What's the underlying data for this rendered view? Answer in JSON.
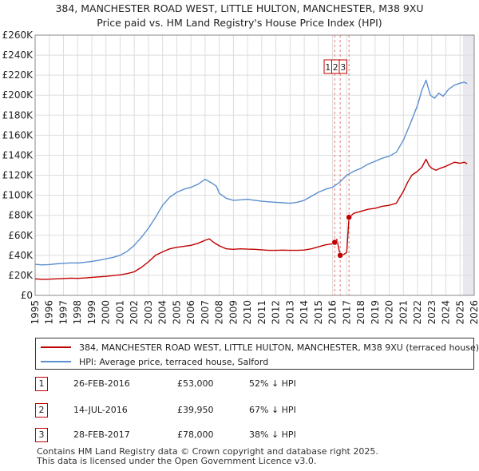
{
  "title": {
    "line1": "384, MANCHESTER ROAD WEST, LITTLE HULTON, MANCHESTER, M38 9XU",
    "line2": "Price paid vs. HM Land Registry's House Price Index (HPI)"
  },
  "colors": {
    "price_line": "#c00000",
    "hpi_line": "#5b8fcf",
    "grid": "#dddddd",
    "marker_vline": "#e07a7a",
    "future_shade": "#e8e8ee"
  },
  "chart_data": {
    "type": "line",
    "title": "Price paid vs. HM Land Registry's House Price Index (HPI)",
    "xlabel": "",
    "ylabel": "",
    "xlim": [
      1995,
      2026
    ],
    "ylim": [
      0,
      260000
    ],
    "y_ticks": [
      0,
      20000,
      40000,
      60000,
      80000,
      100000,
      120000,
      140000,
      160000,
      180000,
      200000,
      220000,
      240000,
      260000
    ],
    "y_tick_labels": [
      "£0",
      "£20K",
      "£40K",
      "£60K",
      "£80K",
      "£100K",
      "£120K",
      "£140K",
      "£160K",
      "£180K",
      "£200K",
      "£220K",
      "£240K",
      "£260K"
    ],
    "x_ticks": [
      1995,
      1996,
      1997,
      1998,
      1999,
      2000,
      2001,
      2002,
      2003,
      2004,
      2005,
      2006,
      2007,
      2008,
      2009,
      2010,
      2011,
      2012,
      2013,
      2014,
      2015,
      2016,
      2017,
      2018,
      2019,
      2020,
      2021,
      2022,
      2023,
      2024,
      2025,
      2026
    ],
    "x_tick_labels": [
      "1995",
      "1996",
      "1997",
      "1998",
      "1999",
      "2000",
      "2001",
      "2002",
      "2003",
      "2004",
      "2005",
      "2006",
      "2007",
      "2008",
      "2009",
      "2010",
      "2011",
      "2012",
      "2013",
      "2014",
      "2015",
      "2016",
      "2017",
      "2018",
      "2019",
      "2020",
      "2021",
      "2022",
      "2023",
      "2024",
      "2025",
      "2026"
    ],
    "grid": true,
    "future_shade_from": 2025.2,
    "series": [
      {
        "name": "384, MANCHESTER ROAD WEST, LITTLE HULTON, MANCHESTER, M38 9XU (terraced house)",
        "color": "#c00000",
        "x": [
          1995.0,
          1995.5,
          1996.0,
          1996.5,
          1997.0,
          1997.5,
          1998.0,
          1998.5,
          1999.0,
          1999.5,
          2000.0,
          2000.5,
          2001.0,
          2001.5,
          2002.0,
          2002.5,
          2003.0,
          2003.5,
          2004.0,
          2004.5,
          2005.0,
          2005.5,
          2006.0,
          2006.5,
          2007.0,
          2007.3,
          2007.6,
          2008.0,
          2008.5,
          2009.0,
          2009.5,
          2010.0,
          2010.5,
          2011.0,
          2011.5,
          2012.0,
          2012.5,
          2013.0,
          2013.5,
          2014.0,
          2014.5,
          2015.0,
          2015.5,
          2016.0,
          2016.15,
          2016.3,
          2016.54,
          2016.8,
          2017.0,
          2017.16,
          2017.5,
          2018.0,
          2018.5,
          2019.0,
          2019.5,
          2020.0,
          2020.5,
          2021.0,
          2021.3,
          2021.6,
          2022.0,
          2022.3,
          2022.6,
          2022.8,
          2023.0,
          2023.3,
          2023.6,
          2024.0,
          2024.3,
          2024.6,
          2025.0,
          2025.3,
          2025.5
        ],
        "values": [
          16500,
          16000,
          16200,
          16500,
          16800,
          17200,
          17000,
          17400,
          18000,
          18500,
          19000,
          19800,
          20500,
          21800,
          23500,
          28000,
          33500,
          40000,
          43500,
          46500,
          48000,
          49000,
          50000,
          52000,
          55000,
          56500,
          53000,
          49500,
          46500,
          46000,
          46500,
          46200,
          46000,
          45500,
          45000,
          45000,
          45200,
          45000,
          45000,
          45300,
          46500,
          48500,
          50500,
          51500,
          53000,
          56000,
          39950,
          41000,
          43000,
          78000,
          82000,
          84000,
          86000,
          87000,
          89000,
          90000,
          92000,
          104000,
          113000,
          120000,
          124000,
          128000,
          136000,
          130000,
          127000,
          125000,
          127000,
          129000,
          131000,
          133000,
          132000,
          133000,
          131500
        ]
      },
      {
        "name": "HPI: Average price, terraced house, Salford",
        "color": "#5b8fcf",
        "x": [
          1995.0,
          1995.5,
          1996.0,
          1996.5,
          1997.0,
          1997.5,
          1998.0,
          1998.5,
          1999.0,
          1999.5,
          2000.0,
          2000.5,
          2001.0,
          2001.5,
          2002.0,
          2002.5,
          2003.0,
          2003.5,
          2004.0,
          2004.5,
          2005.0,
          2005.5,
          2006.0,
          2006.5,
          2007.0,
          2007.5,
          2007.8,
          2008.0,
          2008.5,
          2009.0,
          2009.5,
          2010.0,
          2010.5,
          2011.0,
          2011.5,
          2012.0,
          2012.5,
          2013.0,
          2013.5,
          2014.0,
          2014.5,
          2015.0,
          2015.5,
          2016.0,
          2016.5,
          2017.0,
          2017.5,
          2018.0,
          2018.5,
          2019.0,
          2019.5,
          2020.0,
          2020.5,
          2021.0,
          2021.5,
          2022.0,
          2022.3,
          2022.6,
          2022.9,
          2023.2,
          2023.5,
          2023.8,
          2024.2,
          2024.6,
          2025.0,
          2025.3,
          2025.5
        ],
        "values": [
          31000,
          30500,
          30800,
          31500,
          32000,
          32500,
          32300,
          33000,
          34000,
          35000,
          36500,
          38000,
          40000,
          44000,
          50000,
          58000,
          67000,
          78000,
          90000,
          98000,
          103000,
          106000,
          108000,
          111000,
          116000,
          112000,
          109000,
          102000,
          97000,
          95000,
          95500,
          96000,
          95000,
          94000,
          93500,
          93000,
          92500,
          92000,
          93000,
          95000,
          99000,
          103000,
          106000,
          108000,
          113000,
          120000,
          124000,
          127000,
          131000,
          134000,
          137000,
          139000,
          143000,
          155000,
          172000,
          190000,
          205000,
          215000,
          200000,
          197000,
          202000,
          199000,
          206000,
          210000,
          212000,
          213000,
          211500
        ]
      }
    ],
    "transactions": [
      {
        "id": "1",
        "x": 2016.15,
        "value": 53000,
        "date": "26-FEB-2016",
        "price": "£53,000",
        "hpi_diff": "52% ↓ HPI"
      },
      {
        "id": "2",
        "x": 2016.54,
        "value": 39950,
        "date": "14-JUL-2016",
        "price": "£39,950",
        "hpi_diff": "67% ↓ HPI"
      },
      {
        "id": "3",
        "x": 2017.16,
        "value": 78000,
        "date": "28-FEB-2017",
        "price": "£78,000",
        "hpi_diff": "38% ↓ HPI"
      }
    ]
  },
  "legend": {
    "items": [
      {
        "label": "384, MANCHESTER ROAD WEST, LITTLE HULTON, MANCHESTER, M38 9XU (terraced house)",
        "color": "#c00000"
      },
      {
        "label": "HPI: Average price, terraced house, Salford",
        "color": "#5b8fcf"
      }
    ]
  },
  "table": {
    "rows": [
      {
        "num": "1",
        "date": "26-FEB-2016",
        "price": "£53,000",
        "hpi": "52% ↓ HPI"
      },
      {
        "num": "2",
        "date": "14-JUL-2016",
        "price": "£39,950",
        "hpi": "67% ↓ HPI"
      },
      {
        "num": "3",
        "date": "28-FEB-2017",
        "price": "£78,000",
        "hpi": "38% ↓ HPI"
      }
    ]
  },
  "footer": {
    "line1": "Contains HM Land Registry data © Crown copyright and database right 2025.",
    "line2": "This data is licensed under the Open Government Licence v3.0."
  }
}
